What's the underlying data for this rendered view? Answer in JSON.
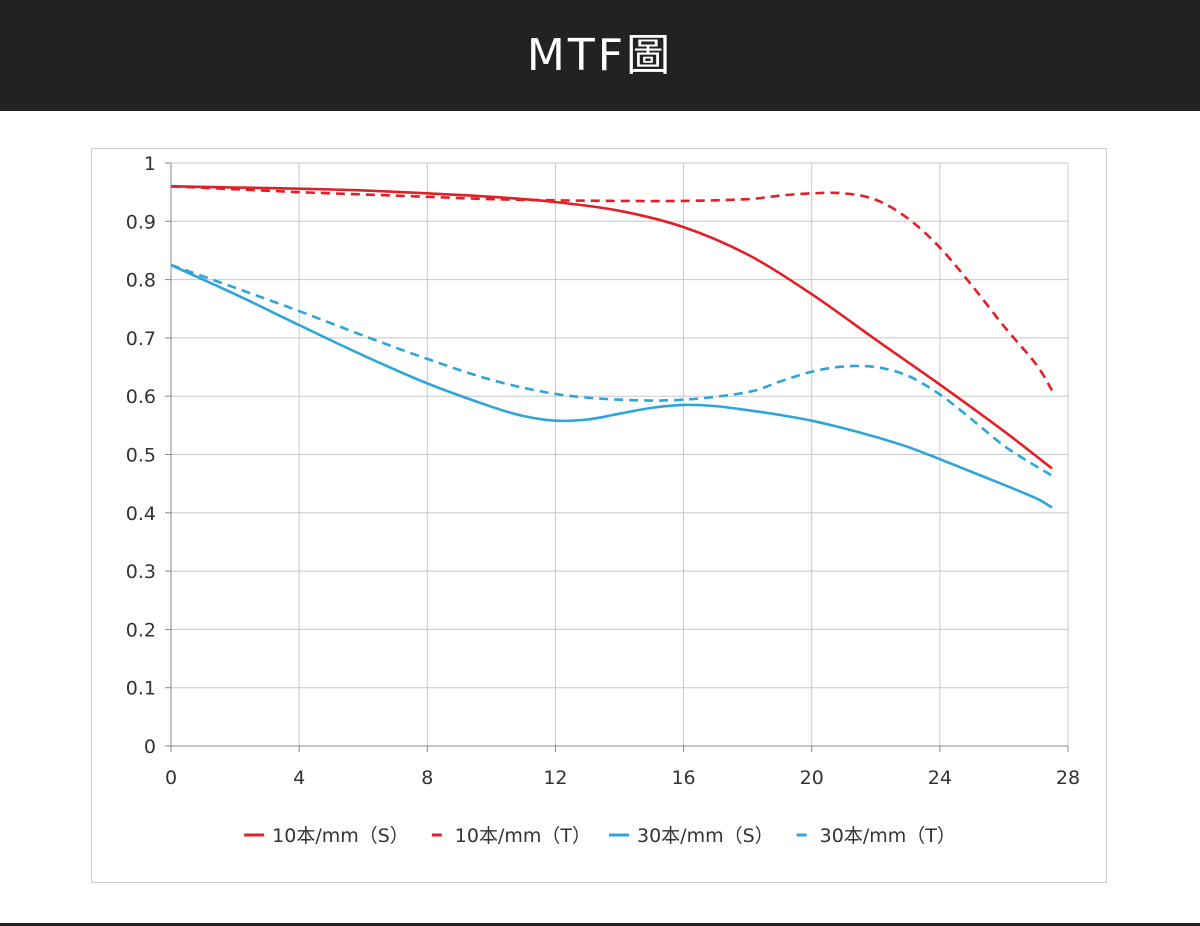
{
  "header": {
    "title": "MTF圖"
  },
  "colors": {
    "header_bg": "#222222",
    "red": "#e21f26",
    "blue": "#2ea5da",
    "grid": "#c8c8c8"
  },
  "chart_data": {
    "type": "line",
    "xlim": [
      0,
      28
    ],
    "ylim": [
      0,
      1
    ],
    "x_ticks": [
      "0",
      "4",
      "8",
      "12",
      "16",
      "20",
      "24",
      "28"
    ],
    "y_ticks": [
      "0",
      "0.1",
      "0.2",
      "0.3",
      "0.4",
      "0.5",
      "0.6",
      "0.7",
      "0.8",
      "0.9",
      "1"
    ],
    "grid": true,
    "legend_position": "bottom",
    "series": [
      {
        "name": "10本/mm（S）",
        "color": "#e21f26",
        "dash": "solid",
        "x": [
          0,
          2,
          4,
          6,
          8,
          10,
          12,
          14,
          16,
          18,
          20,
          22,
          24,
          26,
          27.5
        ],
        "y": [
          0.96,
          0.958,
          0.956,
          0.953,
          0.948,
          0.942,
          0.933,
          0.918,
          0.89,
          0.843,
          0.775,
          0.697,
          0.62,
          0.54,
          0.476
        ]
      },
      {
        "name": "10本/mm（T）",
        "color": "#e21f26",
        "dash": "dashed",
        "x": [
          0,
          2,
          4,
          6,
          8,
          10,
          12,
          14,
          16,
          18,
          19,
          20,
          21,
          22,
          23,
          24,
          25,
          26,
          27,
          27.5
        ],
        "y": [
          0.96,
          0.955,
          0.95,
          0.946,
          0.942,
          0.938,
          0.936,
          0.935,
          0.935,
          0.938,
          0.944,
          0.948,
          0.948,
          0.937,
          0.905,
          0.855,
          0.79,
          0.72,
          0.655,
          0.61
        ]
      },
      {
        "name": "30本/mm（S）",
        "color": "#2ea5da",
        "dash": "solid",
        "x": [
          0,
          2,
          4,
          6,
          8,
          10,
          11,
          12,
          13,
          14,
          15,
          16,
          17,
          18,
          19,
          20,
          21,
          22,
          23,
          24,
          25,
          26,
          27,
          27.5
        ],
        "y": [
          0.825,
          0.775,
          0.722,
          0.67,
          0.622,
          0.582,
          0.566,
          0.558,
          0.56,
          0.57,
          0.58,
          0.585,
          0.583,
          0.576,
          0.568,
          0.558,
          0.545,
          0.53,
          0.513,
          0.492,
          0.47,
          0.448,
          0.425,
          0.409
        ]
      },
      {
        "name": "30本/mm（T）",
        "color": "#2ea5da",
        "dash": "dashed",
        "x": [
          0,
          2,
          4,
          6,
          8,
          10,
          12,
          14,
          16,
          18,
          19,
          20,
          21,
          22,
          23,
          24,
          25,
          26,
          27,
          27.5
        ],
        "y": [
          0.825,
          0.786,
          0.746,
          0.704,
          0.664,
          0.628,
          0.604,
          0.594,
          0.594,
          0.607,
          0.625,
          0.642,
          0.651,
          0.65,
          0.635,
          0.603,
          0.56,
          0.515,
          0.48,
          0.464
        ]
      }
    ]
  }
}
